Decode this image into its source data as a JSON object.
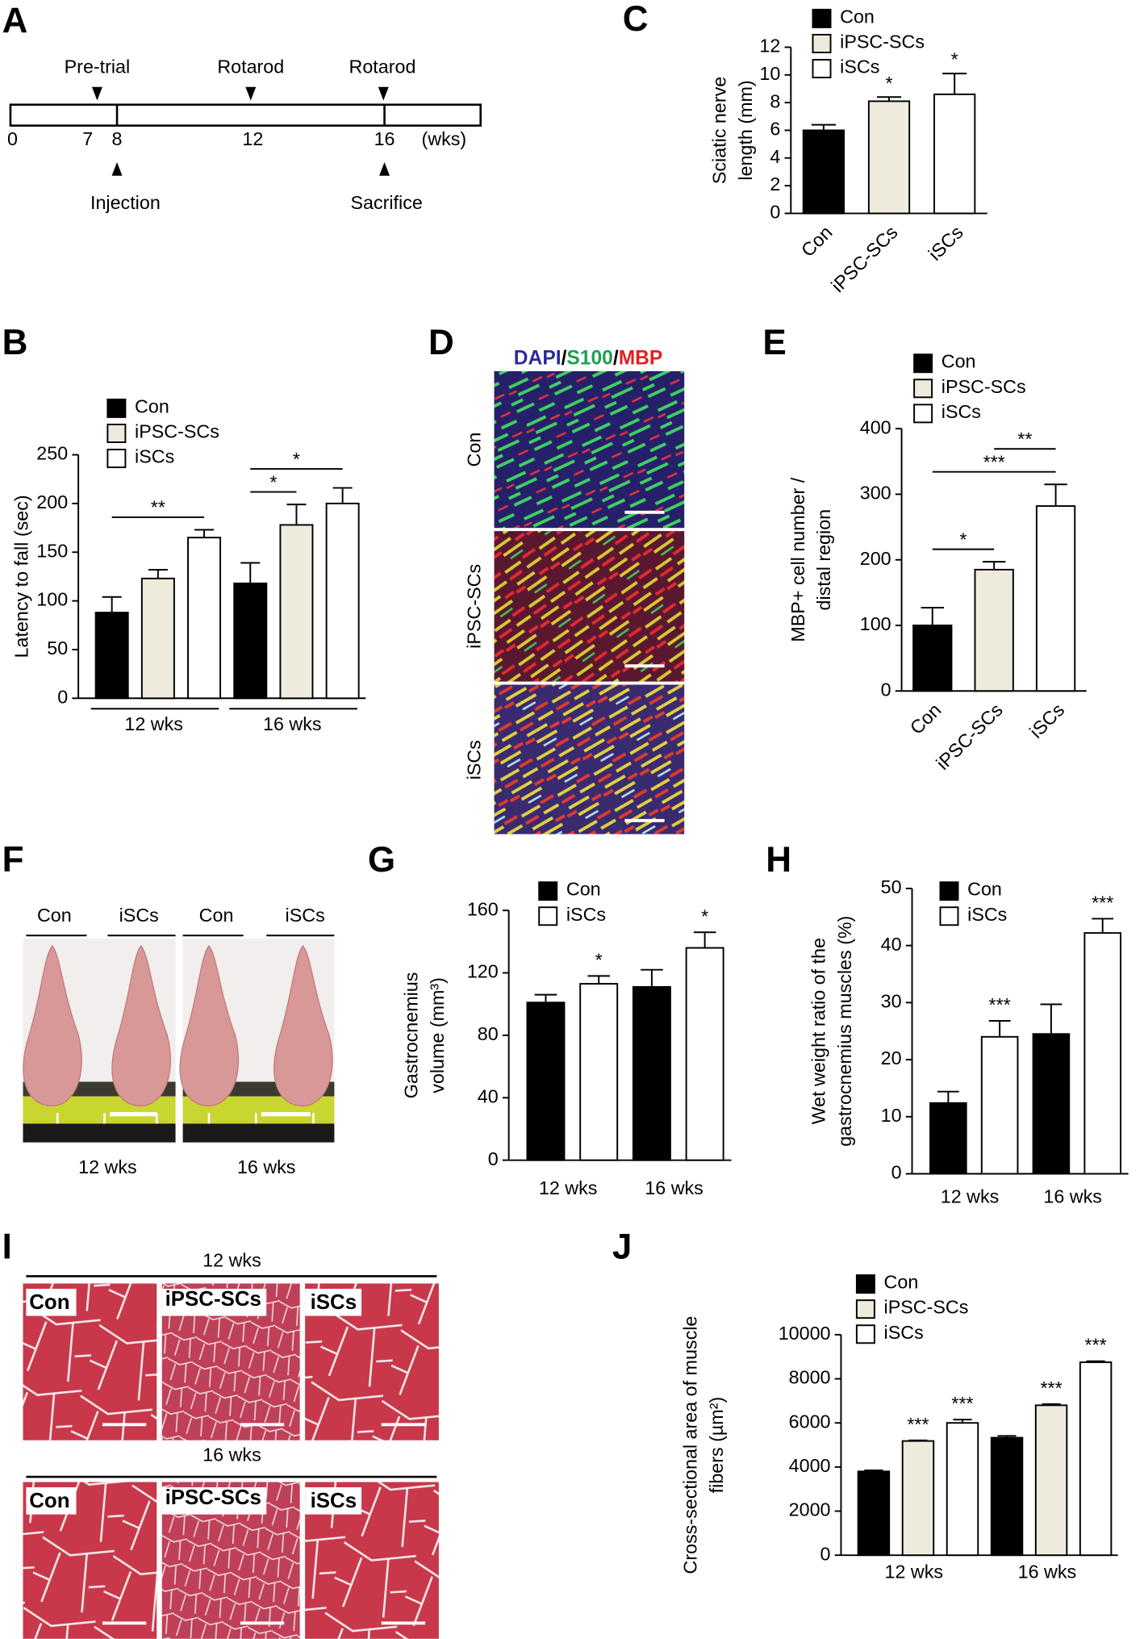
{
  "panel_labels": [
    "A",
    "B",
    "C",
    "D",
    "E",
    "F",
    "G",
    "H",
    "I",
    "J"
  ],
  "timeline": {
    "events_above": [
      "Pre-trial",
      "Rotarod",
      "Rotarod"
    ],
    "ticks": [
      "0",
      "7",
      "8",
      "12",
      "16"
    ],
    "unit": "(wks)",
    "events_below": [
      "Injection",
      "Sacrifice"
    ]
  },
  "panel_d": {
    "stain": [
      "DAPI",
      "/",
      "S100",
      "/",
      "MBP"
    ],
    "rows": [
      "Con",
      "iPSC-SCs",
      "iSCs"
    ]
  },
  "panel_f": {
    "groups": [
      {
        "columns": [
          "Con",
          "iSCs"
        ],
        "time": "12 wks"
      },
      {
        "columns": [
          "Con",
          "iSCs"
        ],
        "time": "16 wks"
      }
    ]
  },
  "panel_i": {
    "rows": [
      {
        "time": "12 wks",
        "columns": [
          "Con",
          "iPSC-SCs",
          "iSCs"
        ]
      },
      {
        "time": "16 wks",
        "columns": [
          "Con",
          "iPSC-SCs",
          "iSCs"
        ]
      }
    ]
  },
  "chart_data": [
    {
      "type": "bar",
      "y_label": [
        "Sciatic nerve",
        "length (mm)"
      ],
      "categories": [
        "Con",
        "iPSC-SCs",
        "iSCs"
      ],
      "values": [
        6.0,
        8.1,
        8.6
      ],
      "errors": [
        0.4,
        0.3,
        1.5
      ],
      "significance": [
        null,
        "*",
        "*"
      ],
      "legend": [
        {
          "name": "Con",
          "color": "#000000"
        },
        {
          "name": "iPSC-SCs",
          "color": "#eeebdc"
        },
        {
          "name": "iSCs",
          "color": "#ffffff"
        }
      ],
      "ylim": [
        0,
        12
      ],
      "yticks": [
        0,
        2,
        4,
        6,
        8,
        10,
        12
      ]
    },
    {
      "type": "grouped_bar",
      "y_label": [
        "Latency to fall (sec)"
      ],
      "categories": [
        "12 wks",
        "16 wks"
      ],
      "series": [
        {
          "name": "Con",
          "color": "#000000",
          "values": [
            88,
            118
          ],
          "errors": [
            16,
            21
          ]
        },
        {
          "name": "iPSC-SCs",
          "color": "#eeebdc",
          "values": [
            123,
            178
          ],
          "errors": [
            9,
            21
          ]
        },
        {
          "name": "iSCs",
          "color": "#ffffff",
          "values": [
            165,
            200
          ],
          "errors": [
            8,
            16
          ]
        }
      ],
      "brackets": [
        {
          "label": "**",
          "category": "12 wks",
          "from": "Con",
          "to": "iSCs"
        },
        {
          "label": "*",
          "category": "16 wks",
          "from": "Con",
          "to": "iPSC-SCs"
        },
        {
          "label": "*",
          "category": "16 wks",
          "from": "Con",
          "to": "iSCs"
        }
      ],
      "ylim": [
        0,
        250
      ],
      "yticks": [
        0,
        50,
        100,
        150,
        200,
        250
      ]
    },
    {
      "type": "bar",
      "y_label": [
        "MBP+ cell number /",
        "distal region"
      ],
      "categories": [
        "Con",
        "iPSC-SCs",
        "iSCs"
      ],
      "values": [
        100,
        185,
        282
      ],
      "errors": [
        27,
        12,
        33
      ],
      "legend": [
        {
          "name": "Con",
          "color": "#000000"
        },
        {
          "name": "iPSC-SCs",
          "color": "#eeebdc"
        },
        {
          "name": "iSCs",
          "color": "#ffffff"
        }
      ],
      "brackets": [
        {
          "label": "*",
          "from": "Con",
          "to": "iPSC-SCs"
        },
        {
          "label": "***",
          "from": "Con",
          "to": "iSCs"
        },
        {
          "label": "**",
          "from": "iPSC-SCs",
          "to": "iSCs"
        }
      ],
      "ylim": [
        0,
        400
      ],
      "yticks": [
        0,
        100,
        200,
        300,
        400
      ]
    },
    {
      "type": "grouped_bar",
      "y_label": [
        "Gastrocnemius",
        "volume (mm³)"
      ],
      "categories": [
        "12 wks",
        "16 wks"
      ],
      "series": [
        {
          "name": "Con",
          "color": "#000000",
          "values": [
            101,
            111
          ],
          "errors": [
            5,
            11
          ]
        },
        {
          "name": "iSCs",
          "color": "#ffffff",
          "values": [
            113,
            136
          ],
          "errors": [
            5,
            10
          ],
          "significance": [
            "*",
            "*"
          ]
        }
      ],
      "ylim": [
        0,
        160
      ],
      "yticks": [
        0,
        40,
        80,
        120,
        160
      ]
    },
    {
      "type": "grouped_bar",
      "y_label": [
        "Wet weight ratio of the",
        "gastrocnemius muscles (%)"
      ],
      "categories": [
        "12 wks",
        "16 wks"
      ],
      "series": [
        {
          "name": "Con",
          "color": "#000000",
          "values": [
            12.4,
            24.5
          ],
          "errors": [
            2,
            5.2
          ]
        },
        {
          "name": "iSCs",
          "color": "#ffffff",
          "values": [
            24,
            42.2
          ],
          "errors": [
            2.8,
            2.5
          ],
          "significance": [
            "***",
            "***"
          ]
        }
      ],
      "ylim": [
        0,
        50
      ],
      "yticks": [
        0,
        10,
        20,
        30,
        40,
        50
      ]
    },
    {
      "type": "grouped_bar",
      "y_label": [
        "Cross-sectional area of muscle",
        "fibers (µm²)"
      ],
      "categories": [
        "12 wks",
        "16 wks"
      ],
      "series": [
        {
          "name": "Con",
          "color": "#000000",
          "values": [
            3800,
            5330
          ],
          "errors": [
            50,
            80
          ]
        },
        {
          "name": "iPSC-SCs",
          "color": "#eeebdc",
          "values": [
            5180,
            6800
          ],
          "errors": [
            30,
            50
          ],
          "significance": [
            "***",
            "***"
          ]
        },
        {
          "name": "iSCs",
          "color": "#ffffff",
          "values": [
            6000,
            8750
          ],
          "errors": [
            150,
            50
          ],
          "significance": [
            "***",
            "***"
          ]
        }
      ],
      "ylim": [
        0,
        10000
      ],
      "yticks": [
        0,
        2000,
        4000,
        6000,
        8000,
        10000
      ]
    }
  ]
}
